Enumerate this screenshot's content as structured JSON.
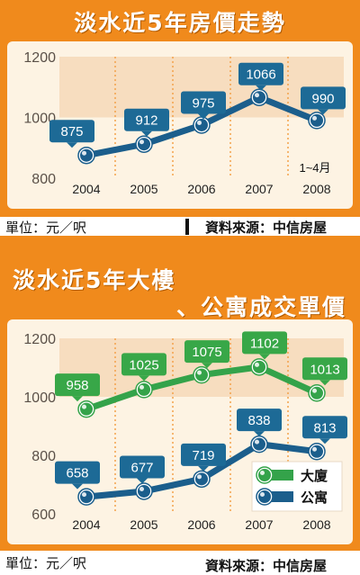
{
  "colors": {
    "frame": "#f08a1c",
    "plot_bg": "#fdf3e3",
    "band": "#f7ddbf",
    "line_blue": "#1b5e8c",
    "line_green": "#34a34a",
    "label_blue": "#1d6a96",
    "label_green": "#38a748"
  },
  "unit_text": "單位：元／呎",
  "source_text": "資料來源：中信房屋",
  "chart_data": [
    {
      "type": "line",
      "title": "淡水近5年房價走勢",
      "categories": [
        "2004",
        "2005",
        "2006",
        "2007",
        "2008"
      ],
      "series": [
        {
          "values": [
            875,
            912,
            975,
            1066,
            990
          ]
        }
      ],
      "ylim": [
        800,
        1200
      ],
      "yticks": [
        "1200",
        "1000",
        "800"
      ],
      "annotation": "1~4月",
      "unit": "單位：元／呎",
      "source": "資料來源：中信房屋"
    },
    {
      "type": "line",
      "title_lines": [
        "淡水近5年大樓",
        "、公寓成交單價"
      ],
      "categories": [
        "2004",
        "2005",
        "2006",
        "2007",
        "2008"
      ],
      "series": [
        {
          "name": "大廈",
          "values": [
            958,
            1025,
            1075,
            1102,
            1013
          ]
        },
        {
          "name": "公寓",
          "values": [
            658,
            677,
            719,
            838,
            813
          ]
        }
      ],
      "ylim": [
        600,
        1200
      ],
      "yticks": [
        "1200",
        "1000",
        "800",
        "600"
      ],
      "legend": "bottom-right",
      "unit": "單位：元／呎",
      "source": "資料來源：中信房屋"
    }
  ]
}
